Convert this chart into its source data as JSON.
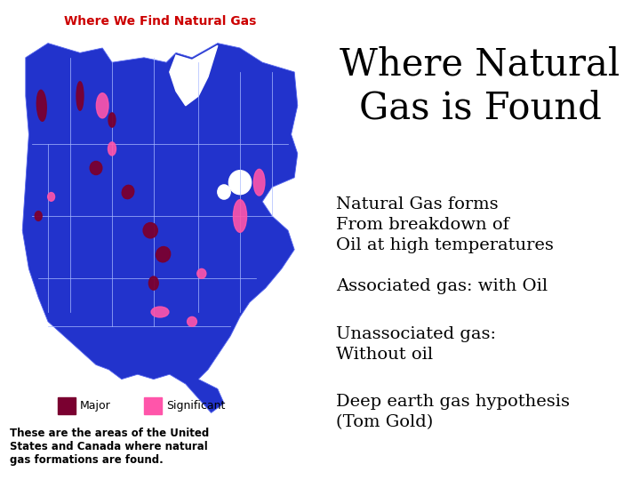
{
  "title": "Where Natural\nGas is Found",
  "title_fontsize": 30,
  "bg_color": "#ffffff",
  "map_title": "Where We Find Natural Gas",
  "map_title_color": "#cc0000",
  "map_bg_color": "#2233cc",
  "major_color": "#7a0030",
  "significant_color": "#ff55aa",
  "legend_major": "Major",
  "legend_significant": "Significant",
  "caption": "These are the areas of the United\nStates and Canada where natural\ngas formations are found.",
  "bullet1": "Natural Gas forms\nFrom breakdown of\nOil at high temperatures",
  "bullet2": "Associated gas: with Oil",
  "bullet3": "Unassociated gas:\nWithout oil",
  "bullet4": "Deep earth gas hypothesis\n(Tom Gold)",
  "text_fontsize": 14,
  "text_color": "#000000"
}
